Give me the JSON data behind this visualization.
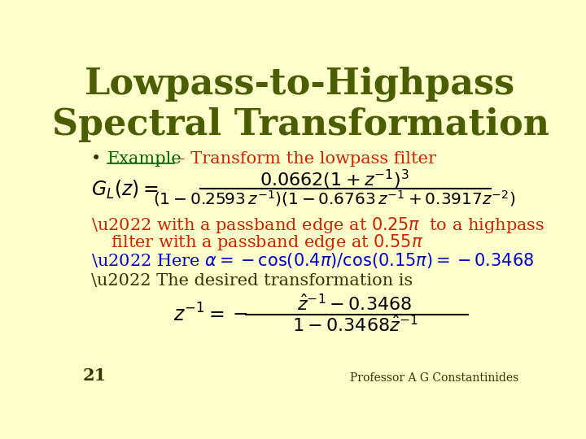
{
  "background_color": "#ffffcc",
  "title_line1": "Lowpass-to-Highpass",
  "title_line2": "Spectral Transformation",
  "title_color": "#4a5e00",
  "title_fontsize": 32,
  "bullet_color_red": "#cc2200",
  "bullet_color_blue": "#0000cc",
  "bullet_color_dark": "#4a5e00",
  "text_color_dark": "#333300",
  "example_green": "#006600",
  "page_number": "21",
  "footer": "Professor A G Constantinides"
}
